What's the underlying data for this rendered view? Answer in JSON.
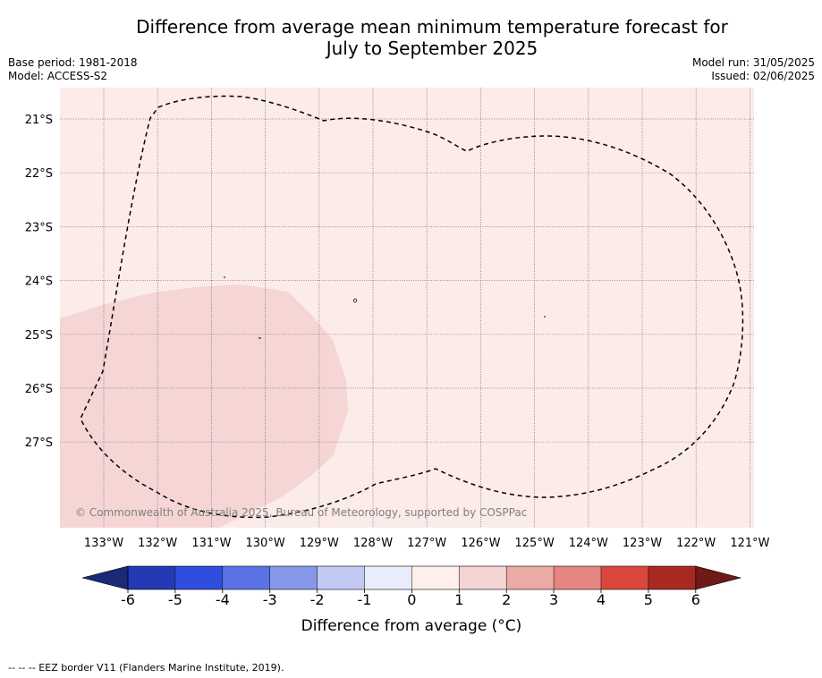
{
  "title_line1": "Difference from average mean minimum temperature forecast for",
  "title_line2": "July to September 2025",
  "base_period": "Base period: 1981-2018",
  "model": "Model: ACCESS-S2",
  "model_run": "Model run: 31/05/2025",
  "issued": "Issued: 02/06/2025",
  "copyright": "© Commonwealth of Australia 2025, Bureau of Meteorology, supported by COSPPac",
  "footnote": "-- -- -- EEZ border V11 (Flanders Marine Institute, 2019).",
  "map": {
    "latitude_labels": [
      "21°S",
      "22°S",
      "23°S",
      "24°S",
      "25°S",
      "26°S",
      "27°S"
    ],
    "longitude_labels": [
      "133°W",
      "132°W",
      "131°W",
      "130°W",
      "129°W",
      "128°W",
      "127°W",
      "126°W",
      "125°W",
      "124°W",
      "123°W",
      "122°W",
      "121°W"
    ],
    "base_fill_color": "#fbebe9",
    "anomaly_patch_color": "#f5d6d5"
  },
  "colorbar": {
    "label": "Difference from average (°C)",
    "ticks": [
      "-6",
      "-5",
      "-4",
      "-3",
      "-2",
      "-1",
      "0",
      "1",
      "2",
      "3",
      "4",
      "5",
      "6"
    ],
    "colors": [
      "#1a2a78",
      "#2639b4",
      "#2f4edd",
      "#5b72e4",
      "#8797ea",
      "#c2c9f3",
      "#e9ecfb",
      "#fcefec",
      "#f4d4d3",
      "#ecaaa5",
      "#e58680",
      "#d9473d",
      "#a82921",
      "#6e1a16"
    ]
  }
}
